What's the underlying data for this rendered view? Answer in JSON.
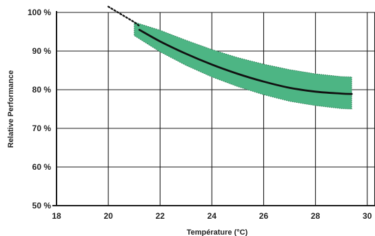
{
  "chart_data": {
    "type": "area",
    "title": "",
    "xlabel": "Température (°C)",
    "ylabel": "Relative Performance",
    "xlim": [
      18,
      30.3
    ],
    "ylim": [
      50,
      100
    ],
    "x_ticks": [
      18,
      20,
      22,
      24,
      26,
      28,
      30
    ],
    "x_tick_labels": [
      "18",
      "20",
      "22",
      "24",
      "26",
      "28",
      "30"
    ],
    "y_ticks": [
      50,
      60,
      70,
      80,
      90,
      100
    ],
    "y_tick_labels": [
      "50 %",
      "60 %",
      "70 %",
      "80 %",
      "90 %",
      "100 %"
    ],
    "grid": true,
    "colors": {
      "band_fill": "#4db584",
      "band_edge": "#2f7d57",
      "line": "#111111"
    },
    "series": [
      {
        "kind": "dotted_extrapolation",
        "x": [
          20.0,
          20.5,
          21.0,
          21.2
        ],
        "y": [
          101.5,
          99.5,
          97.5,
          96.5
        ]
      },
      {
        "kind": "line",
        "x": [
          21.2,
          22,
          23,
          24,
          25,
          26,
          27,
          28,
          29,
          29.4
        ],
        "y": [
          95.5,
          92.5,
          89.3,
          86.5,
          84.1,
          82.1,
          80.5,
          79.5,
          79.0,
          78.9
        ]
      },
      {
        "kind": "band",
        "x": [
          21.0,
          22,
          23,
          24,
          25,
          26,
          27,
          28,
          29,
          29.4
        ],
        "upper": [
          97.5,
          95.4,
          92.8,
          90.4,
          88.3,
          86.6,
          85.2,
          84.1,
          83.4,
          83.3
        ],
        "lower": [
          94.0,
          89.8,
          86.3,
          83.3,
          80.8,
          78.7,
          77.0,
          75.9,
          75.1,
          75.0
        ]
      }
    ]
  }
}
